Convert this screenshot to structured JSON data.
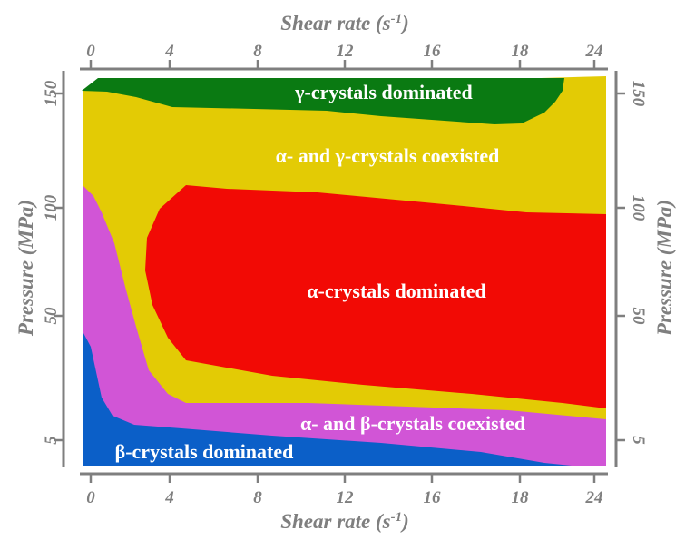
{
  "chart_data": {
    "type": "heatmap",
    "title": "",
    "xlabel": "Shear rate (s-1)",
    "xlabel_parts": {
      "base": "Shear rate (s",
      "sup": "-1",
      "close": ")"
    },
    "ylabel": "Pressure (MPa)",
    "x_ticks": [
      "0",
      "4",
      "8",
      "12",
      "16",
      "18",
      "24"
    ],
    "y_ticks": [
      "5",
      "50",
      "100",
      "150"
    ],
    "regions": [
      {
        "name": "γ-crystals dominated",
        "color": "#0a7a12",
        "label_color": "#ffffff"
      },
      {
        "name": "α- and γ-crystals coexisted",
        "color": "#e3cb05",
        "label_color": "#ffffff"
      },
      {
        "name": "α-crystals dominated",
        "color": "#f20a05",
        "label_color": "#ffffff"
      },
      {
        "name": "α- and β-crystals coexisted",
        "color": "#d155d6",
        "label_color": "#ffffff"
      },
      {
        "name": "β-crystals dominated",
        "color": "#0b5fc8",
        "label_color": "#ffffff"
      }
    ],
    "grid": false,
    "legend": "none"
  }
}
